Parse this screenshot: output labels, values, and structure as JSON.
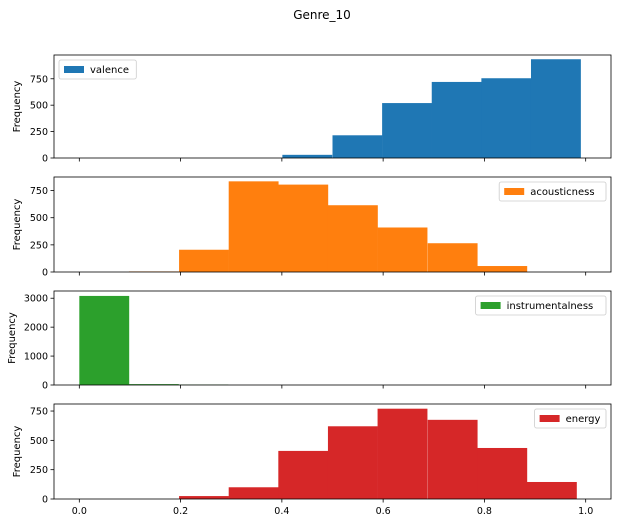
{
  "chart_data": {
    "type": "bar",
    "title": "Genre_10",
    "xlim": [
      -0.05,
      1.05
    ],
    "shared_x_ticks": [
      {
        "value": 0.0,
        "label": "0.0"
      },
      {
        "value": 0.2,
        "label": "0.2"
      },
      {
        "value": 0.4,
        "label": "0.4"
      },
      {
        "value": 0.6,
        "label": "0.6"
      },
      {
        "value": 0.8,
        "label": "0.8"
      },
      {
        "value": 1.0,
        "label": "1.0"
      }
    ],
    "bin_width": 0.0979,
    "panels": [
      {
        "name": "valence",
        "color": "#1f77b4",
        "ylabel": "Frequency",
        "ylim": [
          0,
          975
        ],
        "yticks": [
          {
            "value": 0,
            "label": "0"
          },
          {
            "value": 250,
            "label": "250"
          },
          {
            "value": 500,
            "label": "500"
          },
          {
            "value": 750,
            "label": "750"
          }
        ],
        "legend_loc": "upper left",
        "bin_starts": [
          0.401,
          0.5,
          0.598,
          0.696,
          0.794,
          0.892
        ],
        "counts": [
          30,
          215,
          520,
          720,
          755,
          935
        ]
      },
      {
        "name": "acousticness",
        "color": "#ff7f0e",
        "ylabel": "Frequency",
        "ylim": [
          0,
          875
        ],
        "yticks": [
          {
            "value": 0,
            "label": "0"
          },
          {
            "value": 250,
            "label": "250"
          },
          {
            "value": 500,
            "label": "500"
          },
          {
            "value": 750,
            "label": "750"
          }
        ],
        "legend_loc": "upper right",
        "bin_starts": [
          0.098,
          0.197,
          0.295,
          0.393,
          0.491,
          0.589,
          0.688,
          0.786
        ],
        "counts": [
          5,
          205,
          835,
          805,
          615,
          410,
          265,
          55
        ]
      },
      {
        "name": "instrumentalness",
        "color": "#2ca02c",
        "ylabel": "Frequency",
        "ylim": [
          0,
          3250
        ],
        "yticks": [
          {
            "value": 0,
            "label": "0"
          },
          {
            "value": 1000,
            "label": "1000"
          },
          {
            "value": 2000,
            "label": "2000"
          },
          {
            "value": 3000,
            "label": "3000"
          }
        ],
        "legend_loc": "upper right",
        "bin_starts": [
          0.0,
          0.0979,
          0.1958
        ],
        "counts": [
          3080,
          30,
          12
        ]
      },
      {
        "name": "energy",
        "color": "#d62728",
        "ylabel": "Frequency",
        "ylim": [
          0,
          810
        ],
        "yticks": [
          {
            "value": 0,
            "label": "0"
          },
          {
            "value": 250,
            "label": "250"
          },
          {
            "value": 500,
            "label": "500"
          },
          {
            "value": 750,
            "label": "750"
          }
        ],
        "legend_loc": "upper right",
        "bin_starts": [
          0.197,
          0.295,
          0.393,
          0.491,
          0.589,
          0.688,
          0.786,
          0.884
        ],
        "counts": [
          25,
          100,
          410,
          620,
          770,
          675,
          435,
          145
        ]
      }
    ]
  }
}
